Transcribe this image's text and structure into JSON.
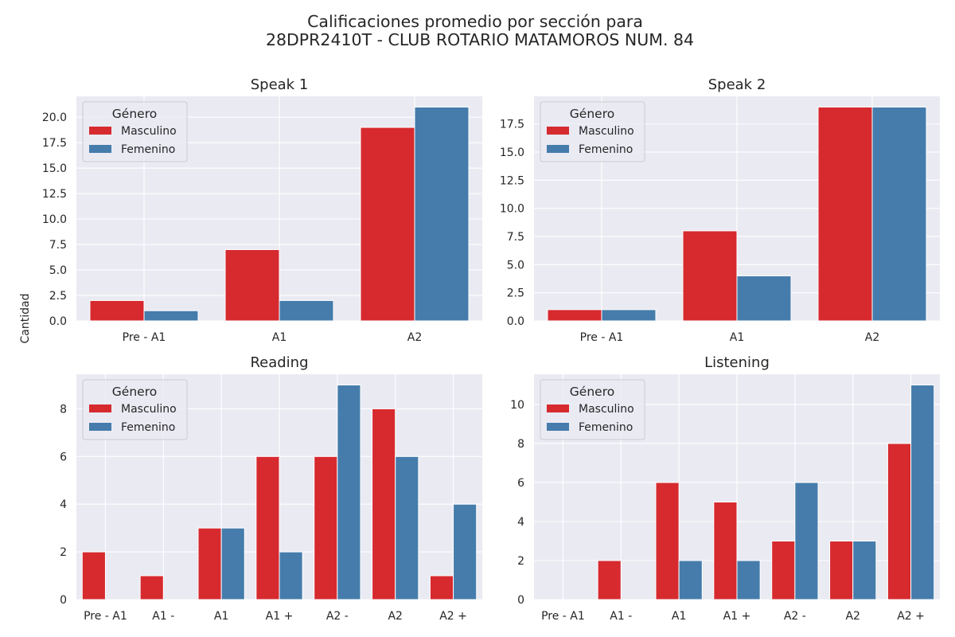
{
  "figure": {
    "title_line1": "Calificaciones promedio por sección para",
    "title_line2": "28DPR2410T - CLUB ROTARIO MATAMOROS NUM. 84",
    "ylabel": "Cantidad",
    "legend": {
      "title": "Género",
      "labels": [
        "Masculino",
        "Femenino"
      ]
    }
  },
  "colors": {
    "Masculino": "#d62a2f",
    "Femenino": "#457cab",
    "plot_bg": "#eaeaf2",
    "grid": "#ffffff"
  },
  "chart_data": [
    {
      "type": "bar",
      "title": "Speak 1",
      "categories": [
        "Pre - A1",
        "A1",
        "A2"
      ],
      "series": [
        {
          "name": "Masculino",
          "values": [
            2,
            7,
            19
          ]
        },
        {
          "name": "Femenino",
          "values": [
            1,
            2,
            21
          ]
        }
      ],
      "ylim": [
        0,
        22.05
      ],
      "yticks": [
        0,
        2.5,
        5,
        7.5,
        10,
        12.5,
        15,
        17.5,
        20
      ],
      "ytick_labels": [
        "0.0",
        "2.5",
        "5.0",
        "7.5",
        "10.0",
        "12.5",
        "15.0",
        "17.5",
        "20.0"
      ],
      "grid": true,
      "legend_position": "upper-left"
    },
    {
      "type": "bar",
      "title": "Speak 2",
      "categories": [
        "Pre - A1",
        "A1",
        "A2"
      ],
      "series": [
        {
          "name": "Masculino",
          "values": [
            1,
            8,
            19
          ]
        },
        {
          "name": "Femenino",
          "values": [
            1,
            4,
            19
          ]
        }
      ],
      "ylim": [
        0,
        19.95
      ],
      "yticks": [
        0,
        2.5,
        5,
        7.5,
        10,
        12.5,
        15,
        17.5
      ],
      "ytick_labels": [
        "0.0",
        "2.5",
        "5.0",
        "7.5",
        "10.0",
        "12.5",
        "15.0",
        "17.5"
      ],
      "grid": true,
      "legend_position": "upper-left"
    },
    {
      "type": "bar",
      "title": "Reading",
      "categories": [
        "Pre - A1",
        "A1 -",
        "A1",
        "A1 +",
        "A2 -",
        "A2",
        "A2 +"
      ],
      "series": [
        {
          "name": "Masculino",
          "values": [
            2,
            1,
            3,
            6,
            6,
            8,
            1
          ]
        },
        {
          "name": "Femenino",
          "values": [
            0,
            0,
            3,
            2,
            9,
            6,
            4
          ]
        }
      ],
      "ylim": [
        0,
        9.45
      ],
      "yticks": [
        0,
        2,
        4,
        6,
        8
      ],
      "ytick_labels": [
        "0",
        "2",
        "4",
        "6",
        "8"
      ],
      "grid": true,
      "legend_position": "upper-left"
    },
    {
      "type": "bar",
      "title": "Listening",
      "categories": [
        "Pre - A1",
        "A1 -",
        "A1",
        "A1 +",
        "A2 -",
        "A2",
        "A2 +"
      ],
      "series": [
        {
          "name": "Masculino",
          "values": [
            0,
            2,
            6,
            5,
            3,
            3,
            8
          ]
        },
        {
          "name": "Femenino",
          "values": [
            0,
            0,
            2,
            2,
            6,
            3,
            11
          ]
        }
      ],
      "ylim": [
        0,
        11.55
      ],
      "yticks": [
        0,
        2,
        4,
        6,
        8,
        10
      ],
      "ytick_labels": [
        "0",
        "2",
        "4",
        "6",
        "8",
        "10"
      ],
      "grid": true,
      "legend_position": "upper-left"
    }
  ]
}
